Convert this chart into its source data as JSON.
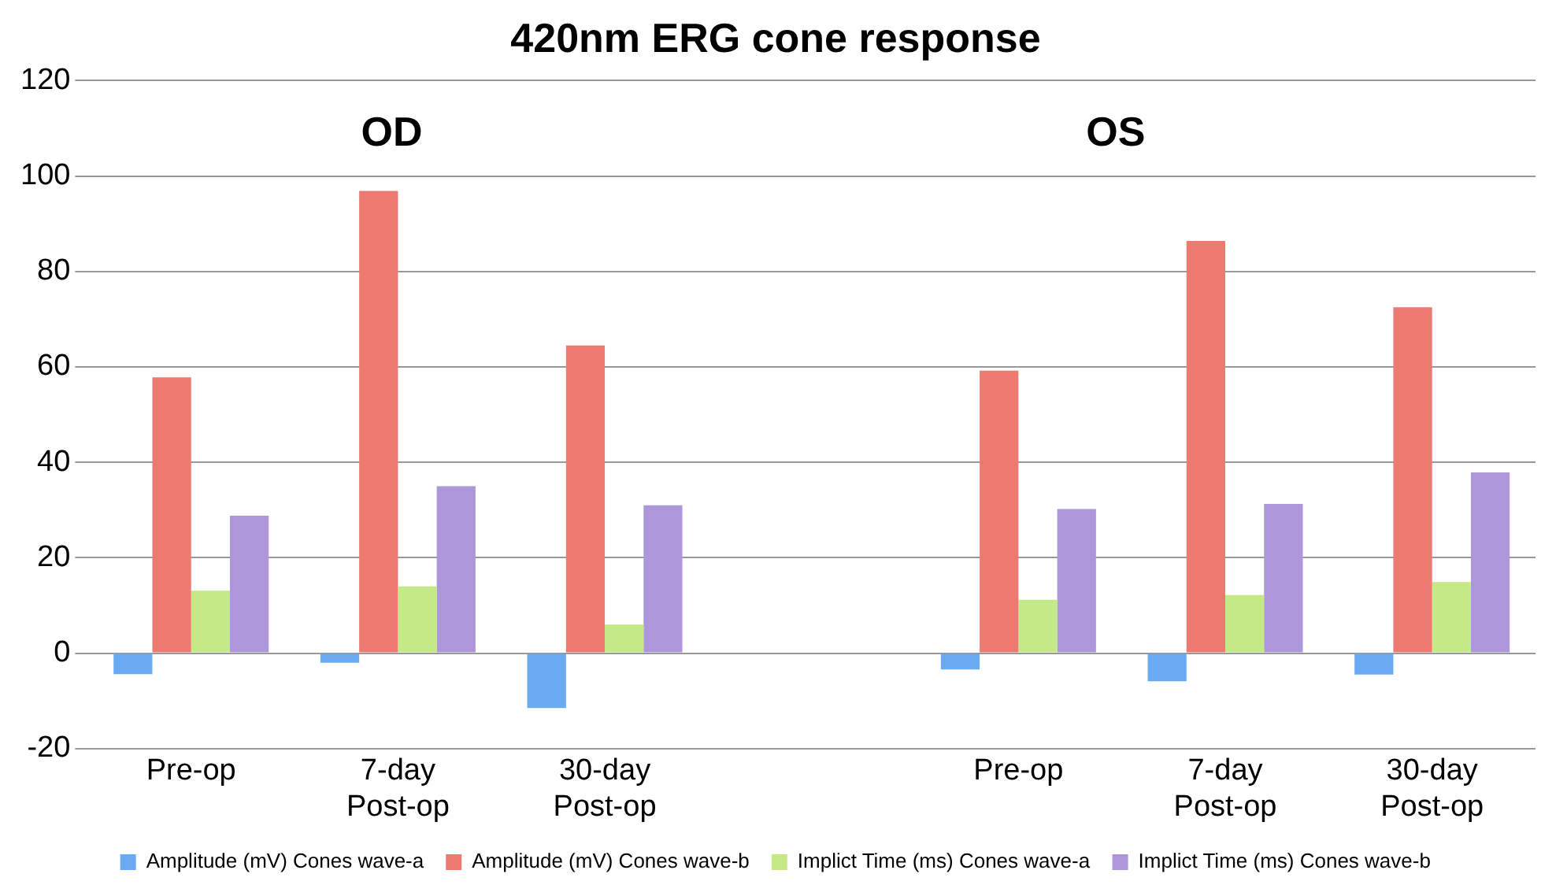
{
  "chart_data": {
    "type": "bar",
    "title": "420nm ERG cone response",
    "categories": [
      "Pre-op",
      "7-day Post-op",
      "30-day Post-op",
      null,
      "Pre-op",
      "7-day Post-op",
      "30-day Post-op"
    ],
    "series": [
      {
        "name": "Amplitude (mV) Cones wave-a",
        "color": "#6aaaf0",
        "values": [
          -4.4,
          -2,
          -11.5,
          null,
          -3.4,
          -5.9,
          -4.5
        ]
      },
      {
        "name": "Amplitude (mV) Cones wave-b",
        "color": "#ec7a70",
        "values": [
          57.8,
          96.9,
          64.5,
          null,
          59.2,
          86.4,
          72.5
        ]
      },
      {
        "name": "Implict Time (ms) Cones wave-a",
        "color": "#c4ea88",
        "values": [
          13.1,
          14,
          6,
          null,
          11.2,
          12.2,
          14.9
        ]
      },
      {
        "name": "Implict Time (ms) Cones wave-b",
        "color": "#ae96da",
        "values": [
          28.8,
          35,
          31,
          null,
          30.2,
          31.3,
          37.9
        ]
      }
    ],
    "ylim": [
      -20,
      120
    ],
    "yticks": [
      -20,
      0,
      20,
      40,
      60,
      80,
      100,
      120
    ],
    "grid": "y",
    "legend": "bottom",
    "annotations": [
      "OD",
      "OS"
    ]
  }
}
